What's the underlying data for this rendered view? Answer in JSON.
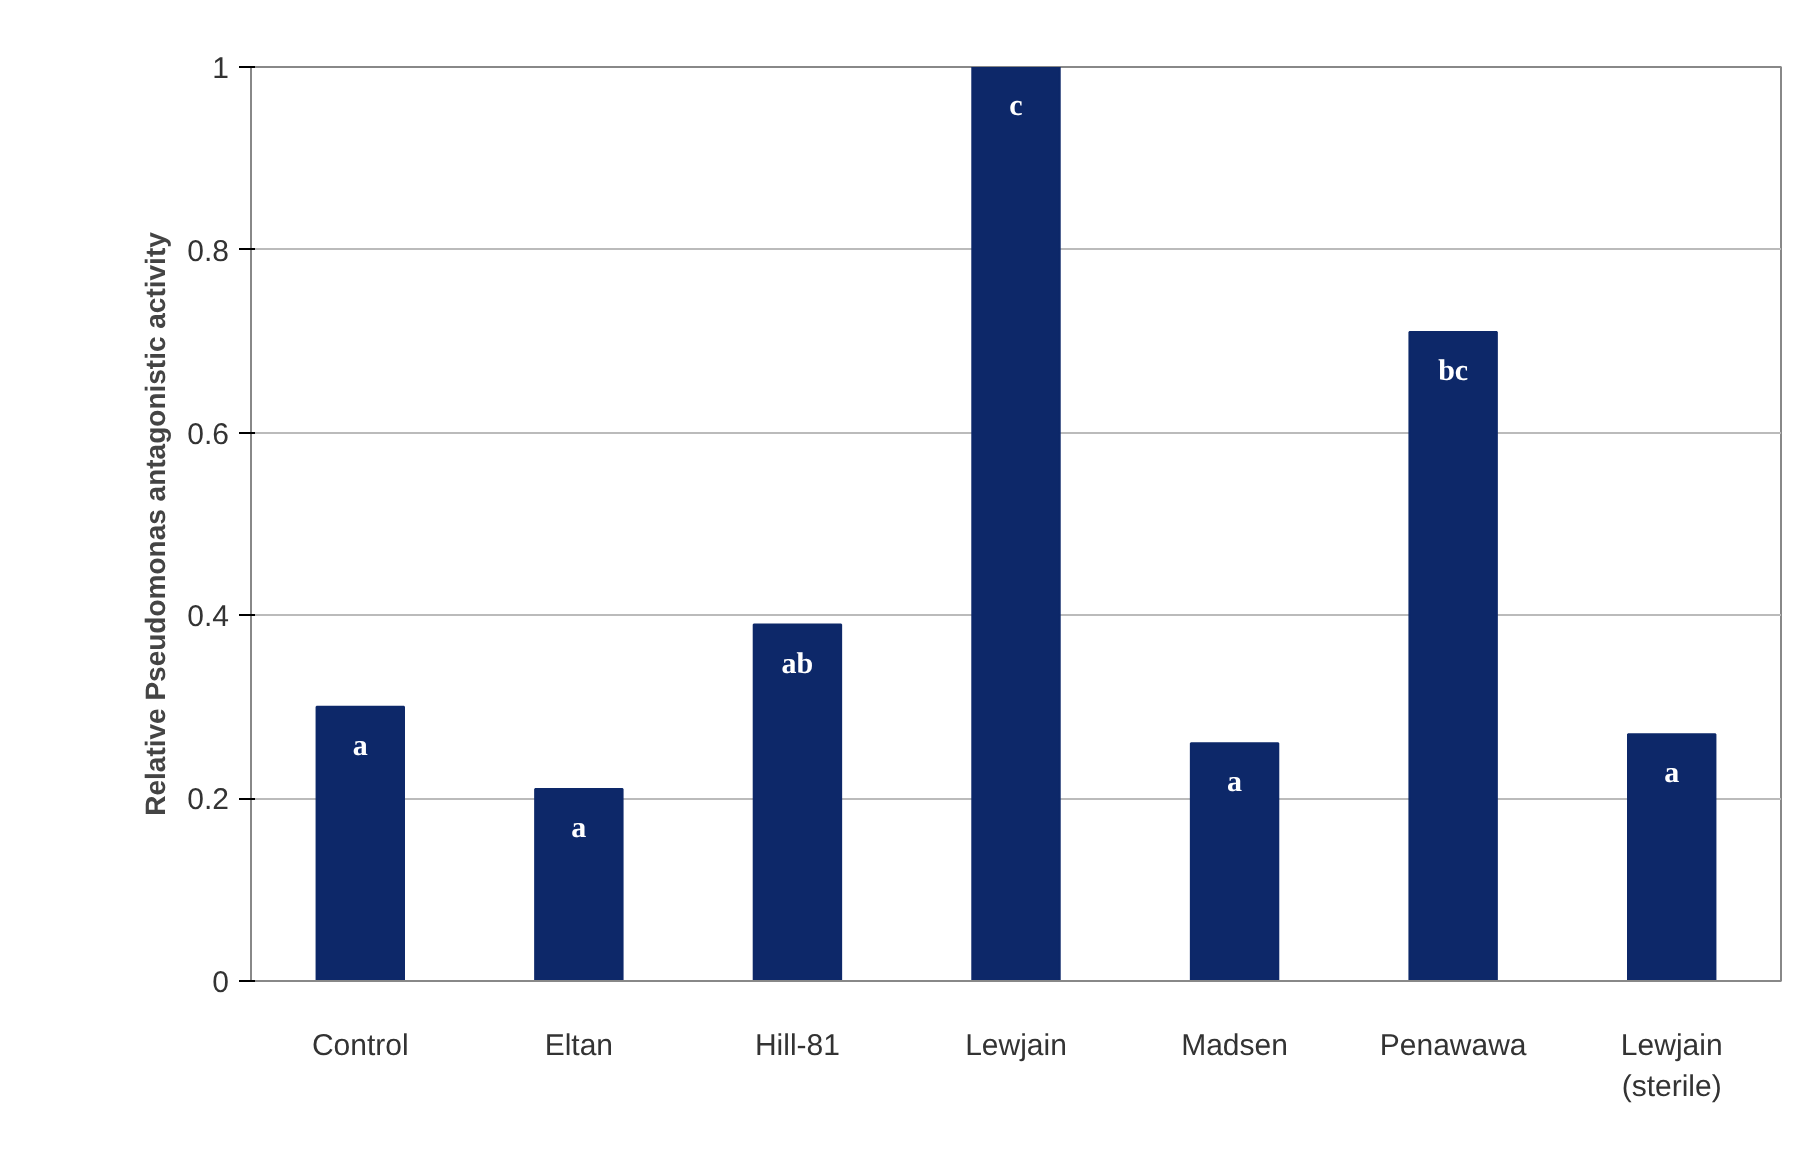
{
  "chart_data": {
    "type": "bar",
    "ylabel": "Relative Pseudomonas antagonistic activity",
    "categories": [
      "Control",
      "Eltan",
      "Hill-81",
      "Lewjain",
      "Madsen",
      "Penawawa",
      "Lewjain\n(sterile)"
    ],
    "values": [
      0.3,
      0.21,
      0.39,
      1.0,
      0.26,
      0.71,
      0.27
    ],
    "value_labels": [
      "a",
      "a",
      "ab",
      "c",
      "a",
      "bc",
      "a"
    ],
    "color": "#0d2869",
    "ylim": [
      0,
      1
    ],
    "yticks": [
      0,
      0.2,
      0.4,
      0.6,
      0.8,
      1
    ],
    "grid": "y"
  }
}
